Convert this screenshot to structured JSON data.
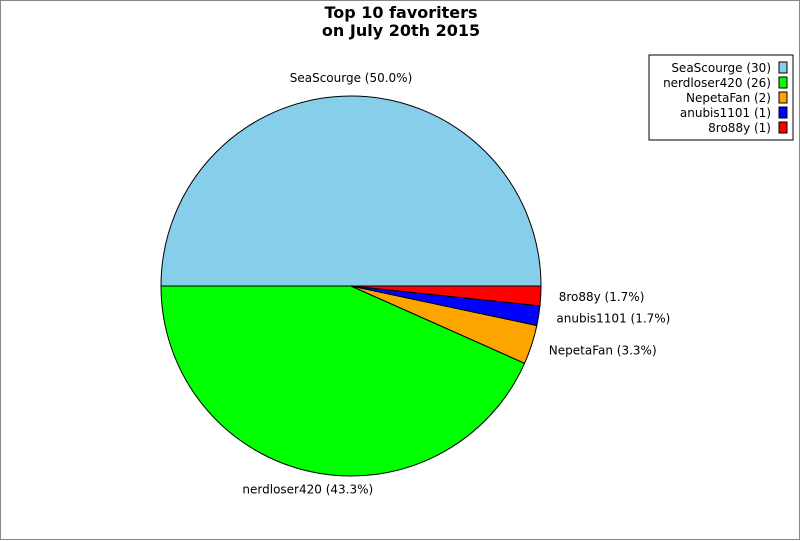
{
  "chart_data": {
    "type": "pie",
    "title_lines": [
      "Top 10 favoriters",
      "on July 20th 2015"
    ],
    "slices": [
      {
        "name": "SeaScourge",
        "value": 30,
        "percent_label": "SeaScourge (50.0%)",
        "legend_label": "SeaScourge (30)",
        "color": "#87ceeb"
      },
      {
        "name": "nerdloser420",
        "value": 26,
        "percent_label": "nerdloser420 (43.3%)",
        "legend_label": "nerdloser420 (26)",
        "color": "#00ff00"
      },
      {
        "name": "NepetaFan",
        "value": 2,
        "percent_label": "NepetaFan (3.3%)",
        "legend_label": "NepetaFan (2)",
        "color": "#ffa500"
      },
      {
        "name": "anubis1101",
        "value": 1,
        "percent_label": "anubis1101 (1.7%)",
        "legend_label": "anubis1101 (1)",
        "color": "#0000ff"
      },
      {
        "name": "8ro88y",
        "value": 1,
        "percent_label": "8ro88y (1.7%)",
        "legend_label": "8ro88y (1)",
        "color": "#ff0000"
      }
    ],
    "legend_position": "top-right"
  }
}
